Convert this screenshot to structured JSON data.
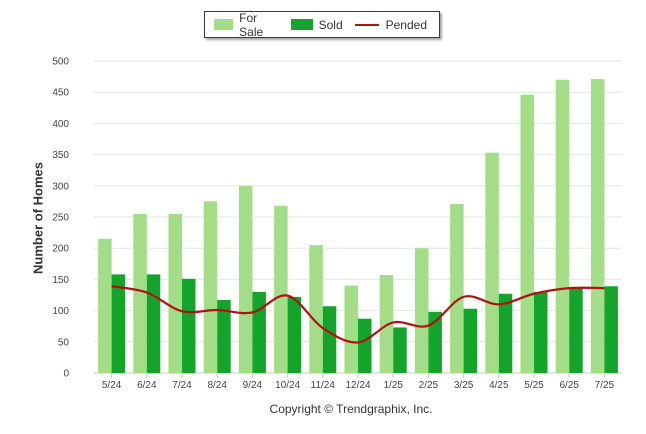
{
  "chart_data": {
    "type": "bar",
    "title": "",
    "xlabel": "",
    "ylabel": "Number of Homes",
    "ylim": [
      0,
      500
    ],
    "yticks": [
      0,
      50,
      100,
      150,
      200,
      250,
      300,
      350,
      400,
      450,
      500
    ],
    "grid": true,
    "legend_position": "top-center",
    "categories": [
      "5/24",
      "6/24",
      "7/24",
      "8/24",
      "9/24",
      "10/24",
      "11/24",
      "12/24",
      "1/25",
      "2/25",
      "3/25",
      "4/25",
      "5/25",
      "6/25",
      "7/25"
    ],
    "series": [
      {
        "name": "For Sale",
        "type": "bar",
        "color": "#a3dd87",
        "values": [
          215,
          255,
          255,
          275,
          300,
          268,
          205,
          140,
          157,
          200,
          271,
          353,
          446,
          470,
          471
        ]
      },
      {
        "name": "Sold",
        "type": "bar",
        "color": "#14a42c",
        "values": [
          158,
          158,
          151,
          117,
          130,
          122,
          107,
          87,
          73,
          98,
          103,
          127,
          130,
          137,
          139
        ]
      },
      {
        "name": "Pended",
        "type": "line",
        "color": "#b31014",
        "values": [
          139,
          129,
          99,
          101,
          97,
          124,
          72,
          49,
          81,
          76,
          122,
          110,
          127,
          136,
          136
        ]
      }
    ]
  },
  "footer": "Copyright © Trendgraphix, Inc."
}
